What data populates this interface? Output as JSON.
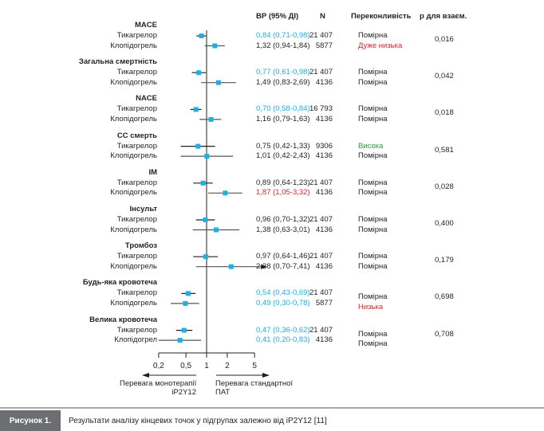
{
  "colors": {
    "accent": "#1ab0e8",
    "bad": "#e8202a",
    "good": "#2a9a3a",
    "text": "#231f20"
  },
  "chart_data": {
    "type": "forest",
    "columns": {
      "hr": "ВР (95% ДІ)",
      "n": "N",
      "confidence": "Переконливість",
      "p": "р для взаєм."
    },
    "xscale": "log",
    "xlim": [
      0.2,
      5
    ],
    "reference": 1,
    "xticks": [
      "0,2",
      "0,5",
      "1",
      "2",
      "5"
    ],
    "xtick_values": [
      0.2,
      0.5,
      1,
      2,
      5
    ],
    "left_arrow_label": [
      "Перевага монотерапії",
      "іР2Y12"
    ],
    "right_arrow_label": [
      "Перевага стандартної",
      "ПАТ"
    ],
    "groups": [
      {
        "title": "MACE",
        "p": "0,016",
        "rows": [
          {
            "label": "Тикагрелор",
            "hr": 0.84,
            "lo": 0.71,
            "hi": 0.98,
            "text": "0,84 (0,71-0,98)",
            "tcolor": "accent",
            "n": "21 407",
            "conf": "Помірна",
            "ccolor": "text"
          },
          {
            "label": "Клопідогрель",
            "hr": 1.32,
            "lo": 0.94,
            "hi": 1.84,
            "text": "1,32 (0,94-1,84)",
            "tcolor": "text",
            "n": "5877",
            "conf": "Дуже низька",
            "ccolor": "bad"
          }
        ]
      },
      {
        "title": "Загальна смертність",
        "p": "0,042",
        "rows": [
          {
            "label": "Тикагрелор",
            "hr": 0.77,
            "lo": 0.61,
            "hi": 0.98,
            "text": "0,77 (0,61-0,98)",
            "tcolor": "accent",
            "n": "21 407",
            "conf": "Помірна",
            "ccolor": "text"
          },
          {
            "label": "Клопідогрель",
            "hr": 1.49,
            "lo": 0.83,
            "hi": 2.69,
            "text": "1,49 (0,83-2,69)",
            "tcolor": "text",
            "n": "4136",
            "conf": "Помірна",
            "ccolor": "text"
          }
        ]
      },
      {
        "title": "NACE",
        "p": "0,018",
        "rows": [
          {
            "label": "Тикагрелор",
            "hr": 0.7,
            "lo": 0.58,
            "hi": 0.84,
            "text": "0,70 (0,58-0,84)",
            "tcolor": "accent",
            "n": "16 793",
            "conf": "Помірна",
            "ccolor": "text"
          },
          {
            "label": "Клопідогрель",
            "hr": 1.16,
            "lo": 0.79,
            "hi": 1.63,
            "text": "1,16 (0,79-1,63)",
            "tcolor": "text",
            "n": "4136",
            "conf": "Помірна",
            "ccolor": "text"
          }
        ]
      },
      {
        "title": "СС смерть",
        "p": "0,581",
        "rows": [
          {
            "label": "Тикагрелор",
            "hr": 0.75,
            "lo": 0.42,
            "hi": 1.33,
            "text": "0,75 (0,42-1,33)",
            "tcolor": "text",
            "n": "9306",
            "conf": "Висока",
            "ccolor": "good"
          },
          {
            "label": "Клопідогрель",
            "hr": 1.01,
            "lo": 0.42,
            "hi": 2.43,
            "text": "1,01 (0,42-2,43)",
            "tcolor": "text",
            "n": "4136",
            "conf": "Помірна",
            "ccolor": "text"
          }
        ]
      },
      {
        "title": "ІМ",
        "p": "0,028",
        "rows": [
          {
            "label": "Тикагрелор",
            "hr": 0.89,
            "lo": 0.64,
            "hi": 1.23,
            "text": "0,89 (0,64-1,23)",
            "tcolor": "text",
            "n": "21 407",
            "conf": "Помірна",
            "ccolor": "text"
          },
          {
            "label": "Клопідогрель",
            "hr": 1.87,
            "lo": 1.05,
            "hi": 3.32,
            "text": "1,87 (1,05-3,32)",
            "tcolor": "bad",
            "n": "4136",
            "conf": "Помірна",
            "ccolor": "text"
          }
        ]
      },
      {
        "title": "Інсульт",
        "p": "0,400",
        "rows": [
          {
            "label": "Тикагрелор",
            "hr": 0.96,
            "lo": 0.7,
            "hi": 1.32,
            "text": "0,96 (0,70-1,32)",
            "tcolor": "text",
            "n": "21 407",
            "conf": "Помірна",
            "ccolor": "text"
          },
          {
            "label": "Клопідогрель",
            "hr": 1.38,
            "lo": 0.63,
            "hi": 3.01,
            "text": "1,38 (0,63-3,01)",
            "tcolor": "text",
            "n": "4136",
            "conf": "Помірна",
            "ccolor": "text"
          }
        ]
      },
      {
        "title": "Тромбоз",
        "p": "0,179",
        "rows": [
          {
            "label": "Тикагрелор",
            "hr": 0.97,
            "lo": 0.64,
            "hi": 1.46,
            "text": "0,97 (0,64-1,46)",
            "tcolor": "text",
            "n": "21 407",
            "conf": "Помірна",
            "ccolor": "text"
          },
          {
            "label": "Клопідогрель",
            "hr": 2.28,
            "lo": 0.7,
            "hi": 7.41,
            "text": "2,28 (0,70-7,41)",
            "tcolor": "text",
            "n": "4136",
            "conf": "Помірна",
            "ccolor": "text"
          }
        ]
      },
      {
        "title": "Будь-яка кровотеча",
        "p": "0,698",
        "rows": [
          {
            "label": "Тикагрелор",
            "hr": 0.54,
            "lo": 0.43,
            "hi": 0.69,
            "text": "0,54 (0,43-0,69)",
            "tcolor": "accent",
            "n": "21 407",
            "conf": "Помірна",
            "ccolor": "text"
          },
          {
            "label": "Клопідогрель",
            "hr": 0.49,
            "lo": 0.3,
            "hi": 0.78,
            "text": "0,49 (0,30-0,78)",
            "tcolor": "accent",
            "n": "5877",
            "conf": "Низька",
            "ccolor": "bad"
          }
        ]
      },
      {
        "title": "Велика кровотеча",
        "p": "0,708",
        "rows": [
          {
            "label": "Тикагрелор",
            "hr": 0.47,
            "lo": 0.36,
            "hi": 0.62,
            "text": "0,47 (0,36-0,62)",
            "tcolor": "accent",
            "n": "21 407",
            "conf": "Помірна",
            "ccolor": "text"
          },
          {
            "label": "Клопідогрел",
            "hr": 0.41,
            "lo": 0.2,
            "hi": 0.83,
            "text": "0,41 (0,20-0,83)",
            "tcolor": "accent",
            "n": "4136",
            "conf": "Помірна",
            "ccolor": "text"
          }
        ]
      }
    ]
  },
  "caption": {
    "label": "Рисунок 1.",
    "text": "Результати аналізу кінцевих точок у підгрупах залежно від іР2Y12 [11]"
  }
}
